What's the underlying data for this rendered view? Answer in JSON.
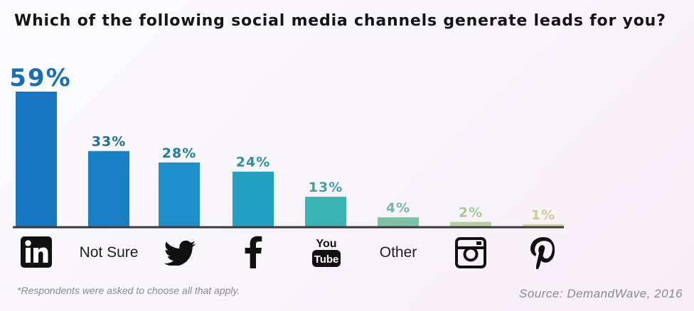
{
  "chart_data": {
    "type": "bar",
    "title": "Which of the following social media channels generate leads for you?",
    "categories": [
      "LinkedIn",
      "Not Sure",
      "Twitter",
      "Facebook",
      "YouTube",
      "Other",
      "Instagram",
      "Pinterest"
    ],
    "category_labels": [
      "",
      "Not Sure",
      "",
      "",
      "",
      "Other",
      "",
      ""
    ],
    "category_icons": [
      "linkedin-icon",
      "",
      "twitter-icon",
      "facebook-icon",
      "youtube-icon",
      "",
      "instagram-icon",
      "pinterest-icon"
    ],
    "values": [
      59,
      33,
      28,
      24,
      13,
      4,
      2,
      1
    ],
    "value_labels": [
      "59%",
      "33%",
      "28%",
      "24%",
      "13%",
      "4%",
      "2%",
      "1%"
    ],
    "bar_colors": [
      "#1676c2",
      "#1a80c6",
      "#1d8ec8",
      "#22a0c4",
      "#39b4b2",
      "#7cc0a6",
      "#b6cfa0",
      "#cfd49e"
    ],
    "label_colors": [
      "#176fb6",
      "#1c6f9c",
      "#1f7fa2",
      "#2a93a3",
      "#3ea3a0",
      "#7cb8a0",
      "#a9c799",
      "#c9d08f"
    ],
    "ylim": [
      0,
      59
    ],
    "xlabel": "",
    "ylabel": "",
    "grid": false,
    "footnote": "*Respondents were asked to choose all that apply.",
    "source": "Source: DemandWave, 2016"
  },
  "icon_text": {
    "youtube_top": "You",
    "youtube_bottom": "Tube"
  }
}
